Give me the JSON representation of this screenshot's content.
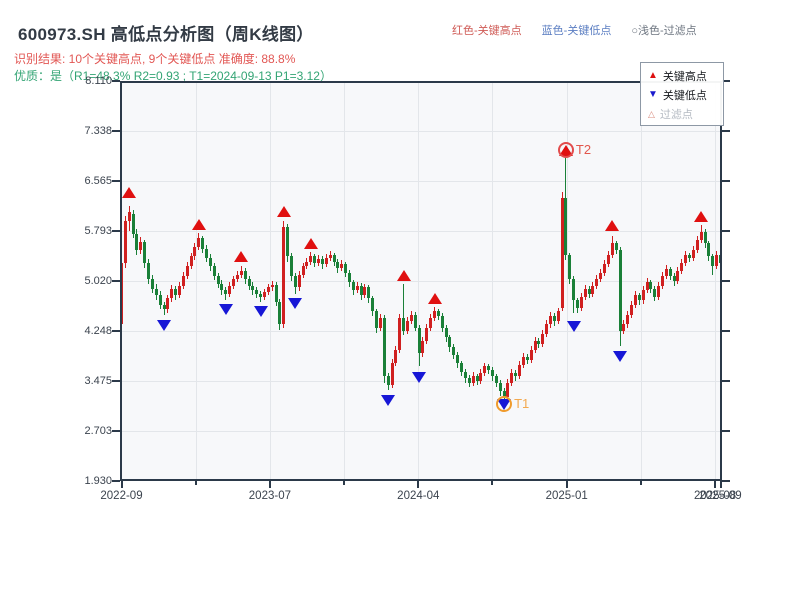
{
  "header": {
    "title": "600973.SH 高低点分析图（周K线图）",
    "result_line": "识别结果: 10个关键高点, 9个关键低点  准确度: 88.8%",
    "quality_line": "优质：是（R1=48.3%  R2=0.93 ; T1=2024-09-13 P1=3.12）",
    "inline_legend": [
      {
        "label": "红色-关键高点",
        "color": "#cf5a55"
      },
      {
        "label": "蓝色-关键低点",
        "color": "#5b7ec2"
      },
      {
        "label": "○浅色-过滤点",
        "color": "#6d7580"
      }
    ]
  },
  "legend_box": {
    "items": [
      {
        "icon": "up-triangle",
        "glyph": "▲",
        "color": "#dd1111",
        "label": "关键高点",
        "label_color": "#15181c"
      },
      {
        "icon": "down-triangle",
        "glyph": "▼",
        "color": "#1a1acd",
        "label": "关键低点",
        "label_color": "#15181c"
      },
      {
        "icon": "outline-triangle",
        "glyph": "△",
        "color": "#d98b7e",
        "label": "过滤点",
        "label_color": "#b4bac2"
      }
    ]
  },
  "chart_data": {
    "type": "candlestick",
    "title": "600973.SH 高低点分析图（周K线图）",
    "xlabel": "",
    "ylabel": "",
    "ylim": [
      1.93,
      8.11
    ],
    "y_ticks": [
      "8.110",
      "7.338",
      "6.565",
      "5.793",
      "5.020",
      "4.248",
      "3.475",
      "2.703",
      "1.930"
    ],
    "x_major_ticks": [
      {
        "week": 0,
        "label": "2022-09"
      },
      {
        "week": 38.4,
        "label": "2023-07"
      },
      {
        "week": 76.8,
        "label": "2024-04"
      },
      {
        "week": 115.2,
        "label": "2025-01"
      },
      {
        "week": 153.6,
        "label": "2025-08"
      },
      {
        "week": 155,
        "label": "2025-09"
      }
    ],
    "x_minor_ticks": [
      19.2,
      57.6,
      96,
      134.4
    ],
    "grid": true,
    "weeks": 156,
    "candles_format": [
      "open",
      "high",
      "low",
      "close"
    ],
    "candles": [
      [
        4.35,
        5.42,
        4.26,
        5.3
      ],
      [
        5.3,
        6.02,
        5.22,
        5.95
      ],
      [
        5.95,
        6.18,
        5.8,
        6.08
      ],
      [
        6.05,
        6.12,
        5.68,
        5.75
      ],
      [
        5.75,
        5.82,
        5.42,
        5.5
      ],
      [
        5.5,
        5.7,
        5.44,
        5.62
      ],
      [
        5.62,
        5.66,
        5.22,
        5.3
      ],
      [
        5.3,
        5.36,
        4.98,
        5.05
      ],
      [
        5.05,
        5.12,
        4.83,
        4.9
      ],
      [
        4.9,
        4.97,
        4.73,
        4.8
      ],
      [
        4.8,
        4.86,
        4.58,
        4.65
      ],
      [
        4.65,
        4.7,
        4.5,
        4.58
      ],
      [
        4.58,
        4.8,
        4.52,
        4.75
      ],
      [
        4.75,
        4.96,
        4.7,
        4.9
      ],
      [
        4.9,
        4.95,
        4.73,
        4.8
      ],
      [
        4.8,
        5.01,
        4.75,
        4.95
      ],
      [
        4.95,
        5.16,
        4.9,
        5.1
      ],
      [
        5.1,
        5.31,
        5.05,
        5.25
      ],
      [
        5.25,
        5.46,
        5.2,
        5.4
      ],
      [
        5.4,
        5.61,
        5.35,
        5.55
      ],
      [
        5.55,
        5.76,
        5.5,
        5.68
      ],
      [
        5.68,
        5.72,
        5.45,
        5.52
      ],
      [
        5.52,
        5.57,
        5.31,
        5.38
      ],
      [
        5.38,
        5.43,
        5.18,
        5.25
      ],
      [
        5.25,
        5.3,
        5.03,
        5.1
      ],
      [
        5.1,
        5.15,
        4.91,
        4.98
      ],
      [
        4.98,
        5.03,
        4.81,
        4.88
      ],
      [
        4.88,
        4.92,
        4.72,
        4.82
      ],
      [
        4.82,
        5.0,
        4.77,
        4.95
      ],
      [
        4.95,
        5.1,
        4.9,
        5.05
      ],
      [
        5.05,
        5.17,
        5.0,
        5.12
      ],
      [
        5.12,
        5.25,
        5.07,
        5.18
      ],
      [
        5.18,
        5.22,
        4.98,
        5.05
      ],
      [
        5.05,
        5.1,
        4.88,
        4.95
      ],
      [
        4.95,
        5.0,
        4.81,
        4.88
      ],
      [
        4.88,
        4.92,
        4.75,
        4.82
      ],
      [
        4.82,
        4.86,
        4.7,
        4.78
      ],
      [
        4.78,
        4.9,
        4.73,
        4.85
      ],
      [
        4.85,
        4.97,
        4.8,
        4.92
      ],
      [
        4.92,
        5.02,
        4.87,
        4.96
      ],
      [
        4.96,
        5.0,
        4.63,
        4.7
      ],
      [
        4.7,
        4.74,
        4.27,
        4.35
      ],
      [
        4.35,
        5.95,
        4.3,
        5.85
      ],
      [
        5.85,
        5.9,
        5.32,
        5.4
      ],
      [
        5.4,
        5.45,
        5.02,
        5.1
      ],
      [
        5.1,
        5.14,
        4.82,
        4.92
      ],
      [
        4.92,
        5.17,
        4.87,
        5.12
      ],
      [
        5.12,
        5.3,
        5.07,
        5.25
      ],
      [
        5.25,
        5.38,
        5.2,
        5.32
      ],
      [
        5.32,
        5.47,
        5.27,
        5.4
      ],
      [
        5.4,
        5.44,
        5.23,
        5.3
      ],
      [
        5.3,
        5.42,
        5.25,
        5.36
      ],
      [
        5.36,
        5.4,
        5.21,
        5.28
      ],
      [
        5.28,
        5.44,
        5.23,
        5.38
      ],
      [
        5.38,
        5.48,
        5.33,
        5.42
      ],
      [
        5.42,
        5.46,
        5.25,
        5.32
      ],
      [
        5.32,
        5.36,
        5.15,
        5.22
      ],
      [
        5.22,
        5.34,
        5.17,
        5.28
      ],
      [
        5.28,
        5.32,
        5.08,
        5.15
      ],
      [
        5.15,
        5.19,
        4.93,
        5.0
      ],
      [
        5.0,
        5.04,
        4.81,
        4.88
      ],
      [
        4.88,
        5.01,
        4.83,
        4.95
      ],
      [
        4.95,
        4.99,
        4.73,
        4.8
      ],
      [
        4.8,
        4.98,
        4.75,
        4.92
      ],
      [
        4.92,
        4.96,
        4.68,
        4.75
      ],
      [
        4.75,
        4.79,
        4.48,
        4.55
      ],
      [
        4.55,
        4.59,
        4.22,
        4.3
      ],
      [
        4.3,
        4.51,
        4.24,
        4.45
      ],
      [
        4.45,
        4.49,
        3.44,
        3.55
      ],
      [
        3.55,
        3.6,
        3.33,
        3.42
      ],
      [
        3.42,
        3.81,
        3.37,
        3.75
      ],
      [
        3.75,
        4.01,
        3.7,
        3.95
      ],
      [
        3.95,
        4.51,
        3.9,
        4.45
      ],
      [
        4.45,
        4.98,
        4.18,
        4.25
      ],
      [
        4.25,
        4.46,
        4.2,
        4.4
      ],
      [
        4.4,
        4.56,
        4.35,
        4.5
      ],
      [
        4.5,
        4.54,
        4.24,
        4.3
      ],
      [
        4.3,
        4.34,
        3.7,
        3.9
      ],
      [
        3.9,
        4.16,
        3.85,
        4.1
      ],
      [
        4.1,
        4.36,
        4.05,
        4.3
      ],
      [
        4.3,
        4.51,
        4.25,
        4.45
      ],
      [
        4.45,
        4.62,
        4.4,
        4.55
      ],
      [
        4.55,
        4.59,
        4.41,
        4.48
      ],
      [
        4.48,
        4.52,
        4.23,
        4.3
      ],
      [
        4.3,
        4.34,
        4.08,
        4.15
      ],
      [
        4.15,
        4.19,
        3.93,
        4.0
      ],
      [
        4.0,
        4.04,
        3.81,
        3.88
      ],
      [
        3.88,
        3.92,
        3.68,
        3.75
      ],
      [
        3.75,
        3.79,
        3.55,
        3.62
      ],
      [
        3.62,
        3.66,
        3.45,
        3.52
      ],
      [
        3.52,
        3.56,
        3.38,
        3.45
      ],
      [
        3.45,
        3.61,
        3.4,
        3.55
      ],
      [
        3.55,
        3.59,
        3.41,
        3.48
      ],
      [
        3.48,
        3.66,
        3.43,
        3.6
      ],
      [
        3.6,
        3.76,
        3.55,
        3.7
      ],
      [
        3.7,
        3.74,
        3.58,
        3.65
      ],
      [
        3.65,
        3.69,
        3.48,
        3.55
      ],
      [
        3.55,
        3.59,
        3.38,
        3.45
      ],
      [
        3.45,
        3.49,
        3.25,
        3.32
      ],
      [
        3.32,
        3.36,
        3.14,
        3.22
      ],
      [
        3.22,
        3.51,
        3.17,
        3.45
      ],
      [
        3.45,
        3.66,
        3.4,
        3.6
      ],
      [
        3.6,
        3.64,
        3.48,
        3.55
      ],
      [
        3.55,
        3.78,
        3.5,
        3.72
      ],
      [
        3.72,
        3.91,
        3.67,
        3.85
      ],
      [
        3.85,
        3.89,
        3.73,
        3.8
      ],
      [
        3.8,
        4.01,
        3.75,
        3.95
      ],
      [
        3.95,
        4.16,
        3.9,
        4.1
      ],
      [
        4.1,
        4.14,
        3.98,
        4.05
      ],
      [
        4.05,
        4.26,
        4.0,
        4.2
      ],
      [
        4.2,
        4.41,
        4.15,
        4.35
      ],
      [
        4.35,
        4.54,
        4.3,
        4.48
      ],
      [
        4.48,
        4.52,
        4.33,
        4.4
      ],
      [
        4.4,
        4.61,
        4.35,
        4.55
      ],
      [
        4.6,
        6.4,
        4.55,
        6.3
      ],
      [
        6.3,
        6.97,
        5.35,
        5.42
      ],
      [
        5.42,
        5.46,
        4.98,
        5.05
      ],
      [
        5.05,
        5.09,
        4.52,
        4.72
      ],
      [
        4.72,
        4.76,
        4.53,
        4.6
      ],
      [
        4.6,
        4.84,
        4.55,
        4.78
      ],
      [
        4.78,
        4.96,
        4.73,
        4.9
      ],
      [
        4.9,
        4.94,
        4.75,
        4.82
      ],
      [
        4.82,
        5.01,
        4.77,
        4.95
      ],
      [
        4.95,
        5.11,
        4.9,
        5.05
      ],
      [
        5.05,
        5.21,
        5.0,
        5.15
      ],
      [
        5.15,
        5.34,
        5.1,
        5.28
      ],
      [
        5.28,
        5.48,
        5.23,
        5.42
      ],
      [
        5.42,
        5.72,
        5.37,
        5.6
      ],
      [
        5.6,
        5.64,
        5.43,
        5.5
      ],
      [
        5.5,
        5.54,
        4.02,
        4.25
      ],
      [
        4.25,
        4.41,
        4.2,
        4.35
      ],
      [
        4.35,
        4.56,
        4.3,
        4.5
      ],
      [
        4.5,
        4.71,
        4.45,
        4.65
      ],
      [
        4.65,
        4.86,
        4.6,
        4.8
      ],
      [
        4.8,
        4.84,
        4.65,
        4.72
      ],
      [
        4.72,
        4.94,
        4.67,
        4.88
      ],
      [
        4.88,
        5.06,
        4.83,
        5.0
      ],
      [
        5.0,
        5.04,
        4.83,
        4.9
      ],
      [
        4.9,
        4.94,
        4.71,
        4.78
      ],
      [
        4.78,
        5.01,
        4.73,
        4.95
      ],
      [
        4.95,
        5.16,
        4.9,
        5.1
      ],
      [
        5.1,
        5.26,
        5.05,
        5.2
      ],
      [
        5.2,
        5.24,
        5.03,
        5.1
      ],
      [
        5.1,
        5.14,
        4.95,
        5.02
      ],
      [
        5.02,
        5.24,
        4.97,
        5.18
      ],
      [
        5.18,
        5.36,
        5.13,
        5.3
      ],
      [
        5.3,
        5.48,
        5.25,
        5.42
      ],
      [
        5.42,
        5.46,
        5.31,
        5.38
      ],
      [
        5.38,
        5.56,
        5.33,
        5.5
      ],
      [
        5.5,
        5.71,
        5.45,
        5.65
      ],
      [
        5.65,
        5.88,
        5.6,
        5.78
      ],
      [
        5.78,
        5.82,
        5.53,
        5.6
      ],
      [
        5.6,
        5.64,
        5.33,
        5.4
      ],
      [
        5.4,
        5.44,
        5.12,
        5.25
      ],
      [
        5.25,
        5.48,
        5.2,
        5.42
      ],
      [
        5.42,
        5.46,
        5.22,
        5.3
      ]
    ],
    "markers": {
      "key_highs": [
        [
          2,
          6.4
        ],
        [
          20,
          5.9
        ],
        [
          31,
          5.4
        ],
        [
          42,
          6.1
        ],
        [
          49,
          5.6
        ],
        [
          73,
          5.12
        ],
        [
          81,
          4.76
        ],
        [
          115,
          7.05
        ],
        [
          127,
          5.88
        ],
        [
          150,
          6.02
        ]
      ],
      "key_lows": [
        [
          11,
          4.34
        ],
        [
          27,
          4.58
        ],
        [
          36,
          4.56
        ],
        [
          45,
          4.68
        ],
        [
          69,
          3.18
        ],
        [
          77,
          3.54
        ],
        [
          99,
          3.12
        ],
        [
          117,
          4.32
        ],
        [
          129,
          3.86
        ]
      ]
    },
    "annotations": [
      {
        "week": 99,
        "label": "T1",
        "price": 3.12,
        "ring_color": "#f09b2c",
        "text_color": "#f3a94f"
      },
      {
        "week": 115,
        "label": "T2",
        "price": 7.05,
        "ring_color": "#e24c4c",
        "text_color": "#e2574d"
      }
    ],
    "colors": {
      "up": "#d02020",
      "down": "#1a8038",
      "key_high": "#e01010",
      "key_low": "#1717d6"
    }
  }
}
